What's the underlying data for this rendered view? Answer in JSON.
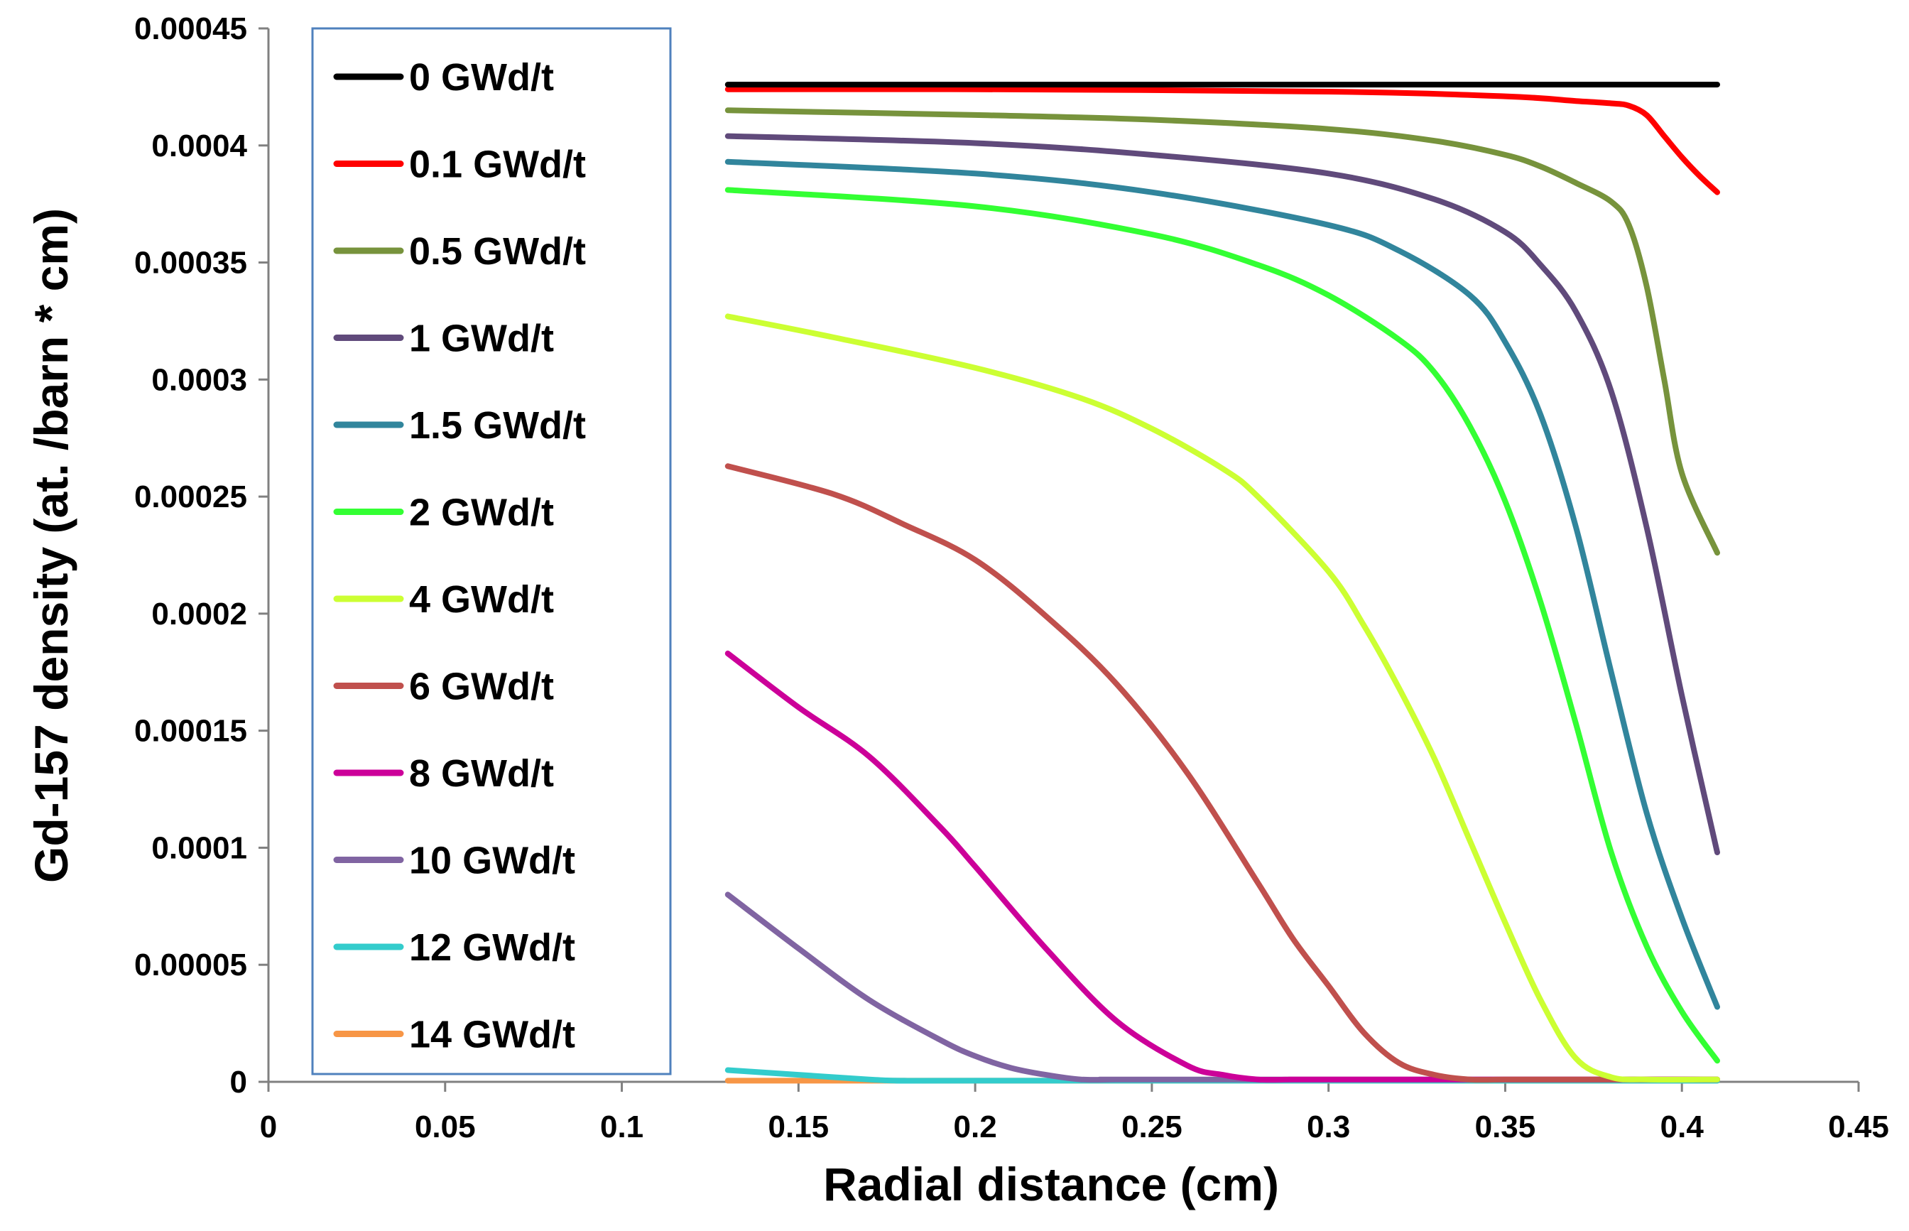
{
  "chart_data": {
    "type": "line",
    "title": "",
    "xlabel": "Radial distance (cm)",
    "ylabel": "Gd-157 density (at. /barn * cm)",
    "xlim": [
      0,
      0.45
    ],
    "ylim": [
      0,
      0.00045
    ],
    "x_ticks": [
      "0",
      "0.05",
      "0.1",
      "0.15",
      "0.2",
      "0.25",
      "0.3",
      "0.35",
      "0.4",
      "0.45"
    ],
    "y_ticks": [
      "0",
      "0.00005",
      "0.0001",
      "0.00015",
      "0.0002",
      "0.00025",
      "0.0003",
      "0.00035",
      "0.0004",
      "0.00045"
    ],
    "grid": false,
    "legend_position": "top-left",
    "series": [
      {
        "name": "0 GWd/t",
        "color": "#000000",
        "x": [
          0.13,
          0.41
        ],
        "y": [
          0.000426,
          0.000426
        ]
      },
      {
        "name": "0.1 GWd/t",
        "color": "#ff0000",
        "x": [
          0.13,
          0.2,
          0.3,
          0.35,
          0.37,
          0.38,
          0.385,
          0.39,
          0.395,
          0.4,
          0.405,
          0.41
        ],
        "y": [
          0.000424,
          0.000424,
          0.000423,
          0.000421,
          0.000419,
          0.000418,
          0.000417,
          0.000413,
          0.000404,
          0.000395,
          0.000387,
          0.00038
        ]
      },
      {
        "name": "0.5 GWd/t",
        "color": "#77933c",
        "x": [
          0.13,
          0.2,
          0.25,
          0.3,
          0.33,
          0.35,
          0.36,
          0.37,
          0.38,
          0.385,
          0.39,
          0.395,
          0.4,
          0.41
        ],
        "y": [
          0.000415,
          0.000413,
          0.000411,
          0.000407,
          0.000402,
          0.000396,
          0.000391,
          0.000384,
          0.000376,
          0.000366,
          0.00034,
          0.0003,
          0.00026,
          0.000226
        ]
      },
      {
        "name": "1 GWd/t",
        "color": "#604a7b",
        "x": [
          0.13,
          0.2,
          0.25,
          0.3,
          0.33,
          0.35,
          0.36,
          0.37,
          0.38,
          0.39,
          0.4,
          0.41
        ],
        "y": [
          0.000404,
          0.000401,
          0.000396,
          0.000388,
          0.000377,
          0.000363,
          0.000349,
          0.000329,
          0.000295,
          0.000237,
          0.000165,
          9.8e-05
        ]
      },
      {
        "name": "1.5 GWd/t",
        "color": "#31859c",
        "x": [
          0.13,
          0.2,
          0.25,
          0.3,
          0.32,
          0.34,
          0.35,
          0.36,
          0.37,
          0.38,
          0.39,
          0.4,
          0.41
        ],
        "y": [
          0.000393,
          0.000388,
          0.00038,
          0.000366,
          0.000355,
          0.000336,
          0.000316,
          0.000285,
          0.000237,
          0.000175,
          0.000115,
          7e-05,
          3.2e-05
        ]
      },
      {
        "name": "2 GWd/t",
        "color": "#33ff33",
        "x": [
          0.13,
          0.2,
          0.25,
          0.28,
          0.3,
          0.32,
          0.33,
          0.34,
          0.35,
          0.36,
          0.37,
          0.38,
          0.39,
          0.4,
          0.41
        ],
        "y": [
          0.000381,
          0.000374,
          0.000362,
          0.000349,
          0.000336,
          0.000317,
          0.000303,
          0.00028,
          0.000248,
          0.000205,
          0.000153,
          9.8e-05,
          5.8e-05,
          3e-05,
          9e-06
        ]
      },
      {
        "name": "4 GWd/t",
        "color": "#ccff33",
        "x": [
          0.13,
          0.16,
          0.2,
          0.23,
          0.25,
          0.27,
          0.28,
          0.3,
          0.31,
          0.32,
          0.33,
          0.34,
          0.35,
          0.36,
          0.37,
          0.38,
          0.39,
          0.41
        ],
        "y": [
          0.000327,
          0.000318,
          0.000305,
          0.000292,
          0.000279,
          0.000262,
          0.00025,
          0.000218,
          0.000195,
          0.000168,
          0.000138,
          0.000103,
          6.8e-05,
          3.5e-05,
          1e-05,
          2e-06,
          1e-06,
          1e-06
        ]
      },
      {
        "name": "6 GWd/t",
        "color": "#c0504d",
        "x": [
          0.13,
          0.16,
          0.18,
          0.2,
          0.22,
          0.24,
          0.26,
          0.28,
          0.29,
          0.3,
          0.31,
          0.32,
          0.33,
          0.34,
          0.35,
          0.36,
          0.41
        ],
        "y": [
          0.000263,
          0.000251,
          0.000238,
          0.000223,
          0.000199,
          0.00017,
          0.000132,
          8.5e-05,
          6.1e-05,
          4.1e-05,
          2.1e-05,
          8e-06,
          3e-06,
          1e-06,
          1e-06,
          1e-06,
          1e-06
        ]
      },
      {
        "name": "8 GWd/t",
        "color": "#cc0099",
        "x": [
          0.13,
          0.15,
          0.17,
          0.19,
          0.2,
          0.22,
          0.24,
          0.26,
          0.27,
          0.28,
          0.29,
          0.3,
          0.41
        ],
        "y": [
          0.000183,
          0.00016,
          0.000139,
          0.000109,
          9.2e-05,
          5.7e-05,
          2.6e-05,
          7e-06,
          3e-06,
          1e-06,
          1e-06,
          1e-06,
          1e-06
        ]
      },
      {
        "name": "10 GWd/t",
        "color": "#8064a2",
        "x": [
          0.13,
          0.15,
          0.17,
          0.19,
          0.2,
          0.21,
          0.22,
          0.23,
          0.24,
          0.25,
          0.41
        ],
        "y": [
          8e-05,
          5.7e-05,
          3.5e-05,
          1.8e-05,
          1.1e-05,
          6e-06,
          3e-06,
          1e-06,
          1e-06,
          1e-06,
          1e-06
        ]
      },
      {
        "name": "12 GWd/t",
        "color": "#33cccc",
        "x": [
          0.13,
          0.15,
          0.17,
          0.18,
          0.2,
          0.41
        ],
        "y": [
          5e-06,
          3e-06,
          1e-06,
          5e-07,
          5e-07,
          5e-07
        ]
      },
      {
        "name": "14 GWd/t",
        "color": "#f79646",
        "x": [
          0.13,
          0.41
        ],
        "y": [
          5e-07,
          5e-07
        ]
      }
    ],
    "legend_border_color": "#4f81bd",
    "axis_color": "#808080"
  }
}
